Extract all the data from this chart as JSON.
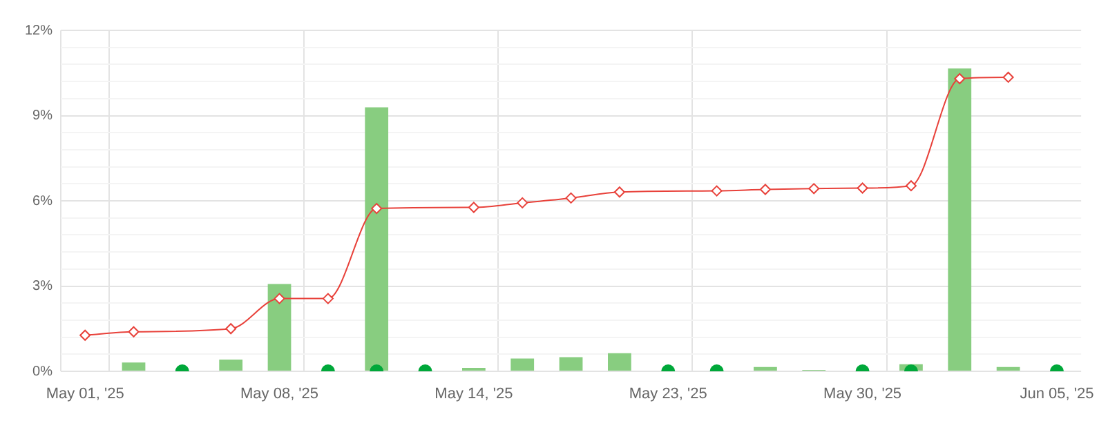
{
  "chart_data": {
    "type": "bar",
    "categories": [
      "May 01, '25",
      null,
      null,
      null,
      "May 08, '25",
      null,
      null,
      null,
      "May 14, '25",
      null,
      null,
      null,
      "May 23, '25",
      null,
      null,
      null,
      "May 30, '25",
      null,
      null,
      null,
      "Jun 05, '25"
    ],
    "series": [
      {
        "type": "bar",
        "color": "#88cd80",
        "values": [
          null,
          0.31,
          null,
          0.41,
          3.07,
          null,
          9.29,
          null,
          0.12,
          0.45,
          0.5,
          0.64,
          null,
          null,
          0.15,
          0.05,
          null,
          0.25,
          10.66,
          0.15,
          null
        ]
      },
      {
        "type": "line",
        "color": "#e8413a",
        "marker": "diamond",
        "values": [
          1.27,
          1.39,
          null,
          1.5,
          2.56,
          2.56,
          5.73,
          null,
          5.77,
          5.93,
          6.1,
          6.31,
          null,
          6.35,
          6.4,
          6.43,
          6.45,
          6.53,
          10.3,
          10.35,
          null
        ]
      },
      {
        "type": "scatter",
        "color": "#00a83a",
        "marker": "circle",
        "values": [
          null,
          null,
          0,
          null,
          null,
          0,
          0,
          0,
          null,
          null,
          null,
          null,
          0,
          0,
          null,
          null,
          0,
          0,
          null,
          null,
          0
        ]
      }
    ],
    "ylim": [
      0,
      12
    ],
    "yticks": [
      {
        "value": 0,
        "label": "0%"
      },
      {
        "value": 0.6,
        "label": null
      },
      {
        "value": 1.2,
        "label": null
      },
      {
        "value": 1.8,
        "label": null
      },
      {
        "value": 2.4,
        "label": null
      },
      {
        "value": 3,
        "label": "3%"
      },
      {
        "value": 3.6,
        "label": null
      },
      {
        "value": 4.2,
        "label": null
      },
      {
        "value": 4.8,
        "label": null
      },
      {
        "value": 5.4,
        "label": null
      },
      {
        "value": 6,
        "label": "6%"
      },
      {
        "value": 6.6,
        "label": null
      },
      {
        "value": 7.2,
        "label": null
      },
      {
        "value": 7.8,
        "label": null
      },
      {
        "value": 8.4,
        "label": null
      },
      {
        "value": 9,
        "label": "9%"
      },
      {
        "value": 9.6,
        "label": null
      },
      {
        "value": 10.2,
        "label": null
      },
      {
        "value": 10.8,
        "label": null
      },
      {
        "value": 11.4,
        "label": null
      },
      {
        "value": 12,
        "label": "12%"
      }
    ],
    "grid": true
  }
}
